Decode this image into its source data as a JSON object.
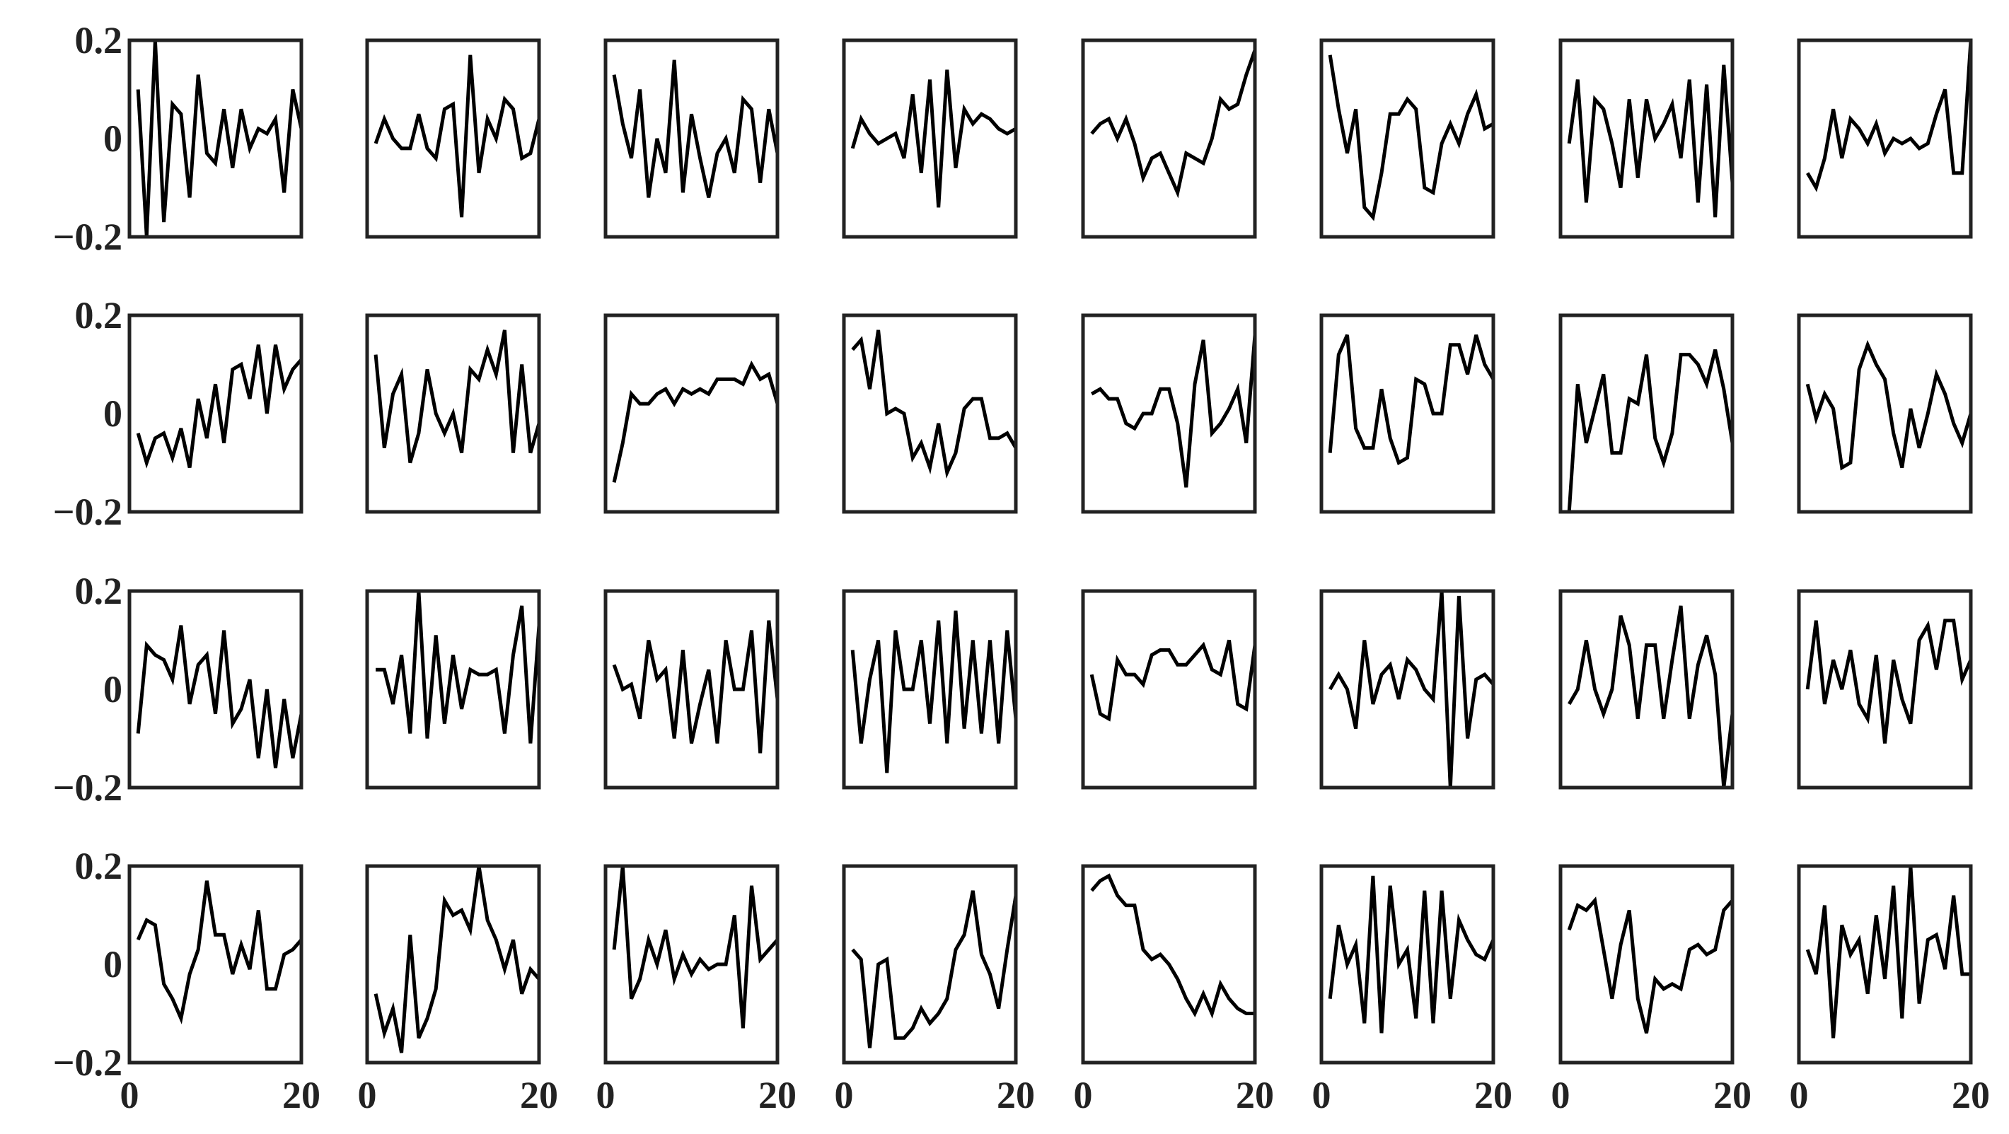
{
  "chart_data": {
    "type": "line",
    "layout": "4x8 grid of small multiples",
    "grid": false,
    "legend": "none",
    "line_color": "#000000",
    "frame_color": "#222222",
    "xlim": [
      0,
      20
    ],
    "ylim": [
      -0.2,
      0.2
    ],
    "x_ticks": [
      "0",
      "20"
    ],
    "y_ticks": [
      "0.2",
      "0",
      "−0.2"
    ],
    "x": [
      1,
      2,
      3,
      4,
      5,
      6,
      7,
      8,
      9,
      10,
      11,
      12,
      13,
      14,
      15,
      16,
      17,
      18,
      19,
      20
    ],
    "panels": [
      {
        "row": 1,
        "col": 1,
        "values": [
          0.1,
          -0.2,
          0.2,
          -0.17,
          0.07,
          0.05,
          -0.12,
          0.13,
          -0.03,
          -0.05,
          0.06,
          -0.06,
          0.06,
          -0.02,
          0.02,
          0.01,
          0.04,
          -0.11,
          0.1,
          0.02
        ]
      },
      {
        "row": 1,
        "col": 2,
        "values": [
          -0.01,
          0.04,
          0.0,
          -0.02,
          -0.02,
          0.05,
          -0.02,
          -0.04,
          0.06,
          0.07,
          -0.16,
          0.17,
          -0.07,
          0.04,
          0.0,
          0.08,
          0.06,
          -0.04,
          -0.03,
          0.04
        ]
      },
      {
        "row": 1,
        "col": 3,
        "values": [
          0.13,
          0.03,
          -0.04,
          0.1,
          -0.12,
          0.0,
          -0.07,
          0.16,
          -0.11,
          0.05,
          -0.04,
          -0.12,
          -0.03,
          0.0,
          -0.07,
          0.08,
          0.06,
          -0.09,
          0.06,
          -0.03
        ]
      },
      {
        "row": 1,
        "col": 4,
        "values": [
          -0.02,
          0.04,
          0.01,
          -0.01,
          0.0,
          0.01,
          -0.04,
          0.09,
          -0.07,
          0.12,
          -0.14,
          0.14,
          -0.06,
          0.06,
          0.03,
          0.05,
          0.04,
          0.02,
          0.01,
          0.02
        ]
      },
      {
        "row": 1,
        "col": 5,
        "values": [
          0.01,
          0.03,
          0.04,
          0.0,
          0.04,
          -0.01,
          -0.08,
          -0.04,
          -0.03,
          -0.07,
          -0.11,
          -0.03,
          -0.04,
          -0.05,
          0.0,
          0.08,
          0.06,
          0.07,
          0.13,
          0.18
        ]
      },
      {
        "row": 1,
        "col": 6,
        "values": [
          0.17,
          0.06,
          -0.03,
          0.06,
          -0.14,
          -0.16,
          -0.07,
          0.05,
          0.05,
          0.08,
          0.06,
          -0.1,
          -0.11,
          -0.01,
          0.03,
          -0.01,
          0.05,
          0.09,
          0.02,
          0.03
        ]
      },
      {
        "row": 1,
        "col": 7,
        "values": [
          -0.01,
          0.12,
          -0.13,
          0.08,
          0.06,
          -0.01,
          -0.1,
          0.08,
          -0.08,
          0.08,
          0.0,
          0.03,
          0.07,
          -0.04,
          0.12,
          -0.13,
          0.11,
          -0.16,
          0.15,
          -0.09
        ]
      },
      {
        "row": 1,
        "col": 8,
        "values": [
          -0.07,
          -0.1,
          -0.04,
          0.06,
          -0.04,
          0.04,
          0.02,
          -0.01,
          0.03,
          -0.03,
          0.0,
          -0.01,
          0.0,
          -0.02,
          -0.01,
          0.05,
          0.1,
          -0.07,
          -0.07,
          0.22
        ]
      },
      {
        "row": 2,
        "col": 1,
        "values": [
          -0.04,
          -0.1,
          -0.05,
          -0.04,
          -0.09,
          -0.03,
          -0.11,
          0.03,
          -0.05,
          0.06,
          -0.06,
          0.09,
          0.1,
          0.03,
          0.14,
          0.0,
          0.14,
          0.05,
          0.09,
          0.11
        ]
      },
      {
        "row": 2,
        "col": 2,
        "values": [
          0.12,
          -0.07,
          0.04,
          0.08,
          -0.1,
          -0.04,
          0.09,
          0.0,
          -0.04,
          0.0,
          -0.08,
          0.09,
          0.07,
          0.13,
          0.08,
          0.17,
          -0.08,
          0.1,
          -0.08,
          -0.02
        ]
      },
      {
        "row": 2,
        "col": 3,
        "values": [
          -0.14,
          -0.06,
          0.04,
          0.02,
          0.02,
          0.04,
          0.05,
          0.02,
          0.05,
          0.04,
          0.05,
          0.04,
          0.07,
          0.07,
          0.07,
          0.06,
          0.1,
          0.07,
          0.08,
          0.02
        ]
      },
      {
        "row": 2,
        "col": 4,
        "values": [
          0.13,
          0.15,
          0.05,
          0.17,
          0.0,
          0.01,
          0.0,
          -0.09,
          -0.06,
          -0.11,
          -0.02,
          -0.12,
          -0.08,
          0.01,
          0.03,
          0.03,
          -0.05,
          -0.05,
          -0.04,
          -0.07
        ]
      },
      {
        "row": 2,
        "col": 5,
        "values": [
          0.04,
          0.05,
          0.03,
          0.03,
          -0.02,
          -0.03,
          0.0,
          0.0,
          0.05,
          0.05,
          -0.02,
          -0.15,
          0.06,
          0.15,
          -0.04,
          -0.02,
          0.01,
          0.05,
          -0.06,
          0.16
        ]
      },
      {
        "row": 2,
        "col": 6,
        "values": [
          -0.08,
          0.12,
          0.16,
          -0.03,
          -0.07,
          -0.07,
          0.05,
          -0.05,
          -0.1,
          -0.09,
          0.07,
          0.06,
          0.0,
          0.0,
          0.14,
          0.14,
          0.08,
          0.16,
          0.1,
          0.07
        ]
      },
      {
        "row": 2,
        "col": 7,
        "values": [
          -0.2,
          0.06,
          -0.06,
          0.01,
          0.08,
          -0.08,
          -0.08,
          0.03,
          0.02,
          0.12,
          -0.05,
          -0.1,
          -0.04,
          0.12,
          0.12,
          0.1,
          0.06,
          0.13,
          0.05,
          -0.06
        ]
      },
      {
        "row": 2,
        "col": 8,
        "values": [
          0.06,
          -0.01,
          0.04,
          0.01,
          -0.11,
          -0.1,
          0.09,
          0.14,
          0.1,
          0.07,
          -0.04,
          -0.11,
          0.01,
          -0.07,
          0.0,
          0.08,
          0.04,
          -0.02,
          -0.06,
          0.0
        ]
      },
      {
        "row": 3,
        "col": 1,
        "values": [
          -0.09,
          0.09,
          0.07,
          0.06,
          0.02,
          0.13,
          -0.03,
          0.05,
          0.07,
          -0.05,
          0.12,
          -0.07,
          -0.04,
          0.02,
          -0.14,
          0.0,
          -0.16,
          -0.02,
          -0.14,
          -0.05
        ]
      },
      {
        "row": 3,
        "col": 2,
        "values": [
          0.04,
          0.04,
          -0.03,
          0.07,
          -0.09,
          0.21,
          -0.1,
          0.11,
          -0.07,
          0.07,
          -0.04,
          0.04,
          0.03,
          0.03,
          0.04,
          -0.09,
          0.07,
          0.17,
          -0.11,
          0.13
        ]
      },
      {
        "row": 3,
        "col": 3,
        "values": [
          0.05,
          0.0,
          0.01,
          -0.06,
          0.1,
          0.02,
          0.04,
          -0.1,
          0.08,
          -0.11,
          -0.03,
          0.04,
          -0.11,
          0.1,
          0.0,
          0.0,
          0.12,
          -0.13,
          0.14,
          -0.02
        ]
      },
      {
        "row": 3,
        "col": 4,
        "values": [
          0.08,
          -0.11,
          0.02,
          0.1,
          -0.17,
          0.12,
          0.0,
          0.0,
          0.1,
          -0.07,
          0.14,
          -0.11,
          0.16,
          -0.08,
          0.1,
          -0.09,
          0.1,
          -0.11,
          0.12,
          -0.06
        ]
      },
      {
        "row": 3,
        "col": 5,
        "values": [
          0.03,
          -0.05,
          -0.06,
          0.06,
          0.03,
          0.03,
          0.01,
          0.07,
          0.08,
          0.08,
          0.05,
          0.05,
          0.07,
          0.09,
          0.04,
          0.03,
          0.1,
          -0.03,
          -0.04,
          0.09
        ]
      },
      {
        "row": 3,
        "col": 6,
        "values": [
          0.0,
          0.03,
          0.0,
          -0.08,
          0.1,
          -0.03,
          0.03,
          0.05,
          -0.02,
          0.06,
          0.04,
          0.0,
          -0.02,
          0.2,
          -0.2,
          0.19,
          -0.1,
          0.02,
          0.03,
          0.01
        ]
      },
      {
        "row": 3,
        "col": 7,
        "values": [
          -0.03,
          0.0,
          0.1,
          0.0,
          -0.05,
          0.0,
          0.15,
          0.09,
          -0.06,
          0.09,
          0.09,
          -0.06,
          0.06,
          0.17,
          -0.06,
          0.05,
          0.11,
          0.03,
          -0.2,
          -0.05
        ]
      },
      {
        "row": 3,
        "col": 8,
        "values": [
          0.0,
          0.14,
          -0.03,
          0.06,
          0.0,
          0.08,
          -0.03,
          -0.06,
          0.07,
          -0.11,
          0.06,
          -0.02,
          -0.07,
          0.1,
          0.13,
          0.04,
          0.14,
          0.14,
          0.02,
          0.06
        ]
      },
      {
        "row": 4,
        "col": 1,
        "values": [
          0.05,
          0.09,
          0.08,
          -0.04,
          -0.07,
          -0.11,
          -0.02,
          0.03,
          0.17,
          0.06,
          0.06,
          -0.02,
          0.04,
          -0.01,
          0.11,
          -0.05,
          -0.05,
          0.02,
          0.03,
          0.05
        ]
      },
      {
        "row": 4,
        "col": 2,
        "values": [
          -0.06,
          -0.14,
          -0.09,
          -0.18,
          0.06,
          -0.15,
          -0.11,
          -0.05,
          0.13,
          0.1,
          0.11,
          0.07,
          0.21,
          0.09,
          0.05,
          -0.01,
          0.05,
          -0.06,
          -0.01,
          -0.03
        ]
      },
      {
        "row": 4,
        "col": 3,
        "values": [
          0.03,
          0.2,
          -0.07,
          -0.03,
          0.05,
          0.0,
          0.07,
          -0.03,
          0.02,
          -0.02,
          0.01,
          -0.01,
          0.0,
          0.0,
          0.1,
          -0.13,
          0.16,
          0.01,
          0.03,
          0.05
        ]
      },
      {
        "row": 4,
        "col": 4,
        "values": [
          0.03,
          0.01,
          -0.17,
          0.0,
          0.01,
          -0.15,
          -0.15,
          -0.13,
          -0.09,
          -0.12,
          -0.1,
          -0.07,
          0.03,
          0.06,
          0.15,
          0.02,
          -0.02,
          -0.09,
          0.03,
          0.14
        ]
      },
      {
        "row": 4,
        "col": 5,
        "values": [
          0.15,
          0.17,
          0.18,
          0.14,
          0.12,
          0.12,
          0.03,
          0.01,
          0.02,
          0.0,
          -0.03,
          -0.07,
          -0.1,
          -0.06,
          -0.1,
          -0.04,
          -0.07,
          -0.09,
          -0.1,
          -0.1
        ]
      },
      {
        "row": 4,
        "col": 6,
        "values": [
          -0.07,
          0.08,
          0.0,
          0.04,
          -0.12,
          0.18,
          -0.14,
          0.16,
          0.0,
          0.03,
          -0.11,
          0.15,
          -0.12,
          0.15,
          -0.07,
          0.09,
          0.05,
          0.02,
          0.01,
          0.05
        ]
      },
      {
        "row": 4,
        "col": 7,
        "values": [
          0.07,
          0.12,
          0.11,
          0.13,
          0.03,
          -0.07,
          0.04,
          0.11,
          -0.07,
          -0.14,
          -0.03,
          -0.05,
          -0.04,
          -0.05,
          0.03,
          0.04,
          0.02,
          0.03,
          0.11,
          0.13
        ]
      },
      {
        "row": 4,
        "col": 8,
        "values": [
          0.03,
          -0.02,
          0.12,
          -0.15,
          0.08,
          0.02,
          0.05,
          -0.06,
          0.1,
          -0.03,
          0.16,
          -0.11,
          0.2,
          -0.08,
          0.05,
          0.06,
          -0.01,
          0.14,
          -0.02,
          -0.02
        ]
      }
    ]
  }
}
